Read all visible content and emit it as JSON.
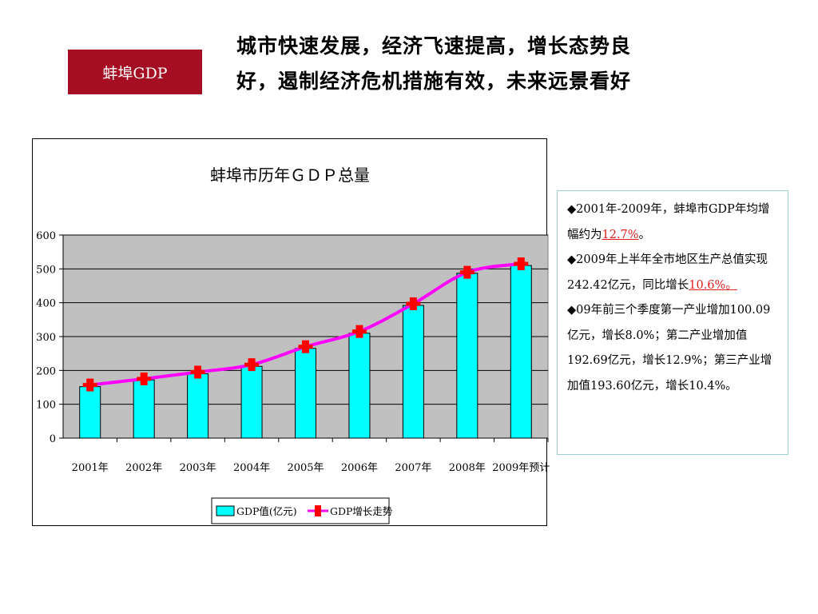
{
  "tag": {
    "label": "蚌埠GDP"
  },
  "headline": {
    "line1": "城市快速发展，经济飞速提高，增长态势良",
    "line2": "好，遏制经济危机措施有效，未来远景看好"
  },
  "chart_data": {
    "type": "bar",
    "title": "蚌埠市历年ＧＤＰ总量",
    "categories": [
      "2001年",
      "2002年",
      "2003年",
      "2004年",
      "2005年",
      "2006年",
      "2007年",
      "2008年",
      "2009年预计"
    ],
    "series": [
      {
        "name": "GDP值(亿元)",
        "type": "bar",
        "values": [
          152,
          172,
          190,
          212,
          265,
          310,
          392,
          487,
          510
        ],
        "color": "#00ffff"
      },
      {
        "name": "GDP增长走势",
        "type": "line",
        "values": [
          157,
          175,
          195,
          217,
          270,
          315,
          397,
          490,
          515
        ],
        "color": "#ff00ff",
        "marker_color": "#ff0000"
      }
    ],
    "ylim": [
      0,
      600
    ],
    "yticks": [
      "0",
      "100",
      "200",
      "300",
      "400",
      "500",
      "600"
    ],
    "xlabel": "",
    "ylabel": "",
    "grid": true,
    "plot_background": "#c0c0c0",
    "legend": "bottom"
  },
  "notes": {
    "p1_prefix": "◆2001年-2009年，蚌埠市GDP年均增幅约为",
    "p1_highlight": "12.7%",
    "p1_suffix": "。",
    "p2_prefix": "◆2009年上半年全市地区生产总值实现242.42亿元，同比增长",
    "p2_highlight": "10.6%。",
    "p3": "◆09年前三个季度第一产业增加100.09亿元，增长8.0%；第二产业增加值192.69亿元，增长12.9%；第三产业增加值193.60亿元，增长10.4%。",
    "highlight_color": "#e0201e"
  }
}
